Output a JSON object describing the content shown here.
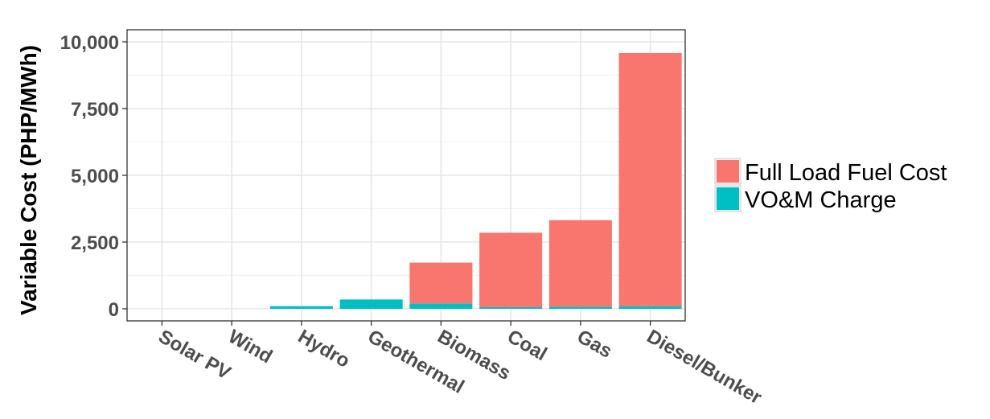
{
  "chart_data": {
    "type": "bar",
    "stacked": true,
    "categories": [
      "Solar PV",
      "Wind",
      "Hydro",
      "Geothermal",
      "Biomass",
      "Coal",
      "Gas",
      "Diesel/Bunker"
    ],
    "series": [
      {
        "name": "Full Load Fuel Cost",
        "color": "#F8766D",
        "values": [
          0,
          0,
          0,
          0,
          1530,
          2790,
          3240,
          9480
        ]
      },
      {
        "name": "VO&M Charge",
        "color": "#00BFC4",
        "values": [
          0,
          0,
          100,
          350,
          200,
          60,
          80,
          100
        ]
      }
    ],
    "ylabel": "Variable Cost (PHP/MWh)",
    "xlabel": "",
    "ylim": [
      -450,
      10000
    ],
    "yticks": [
      0,
      2500,
      5000,
      7500,
      10000
    ],
    "ytick_labels": [
      "0",
      "2,500",
      "5,000",
      "7,500",
      "10,000"
    ],
    "grid": true,
    "legend_position": "right"
  }
}
